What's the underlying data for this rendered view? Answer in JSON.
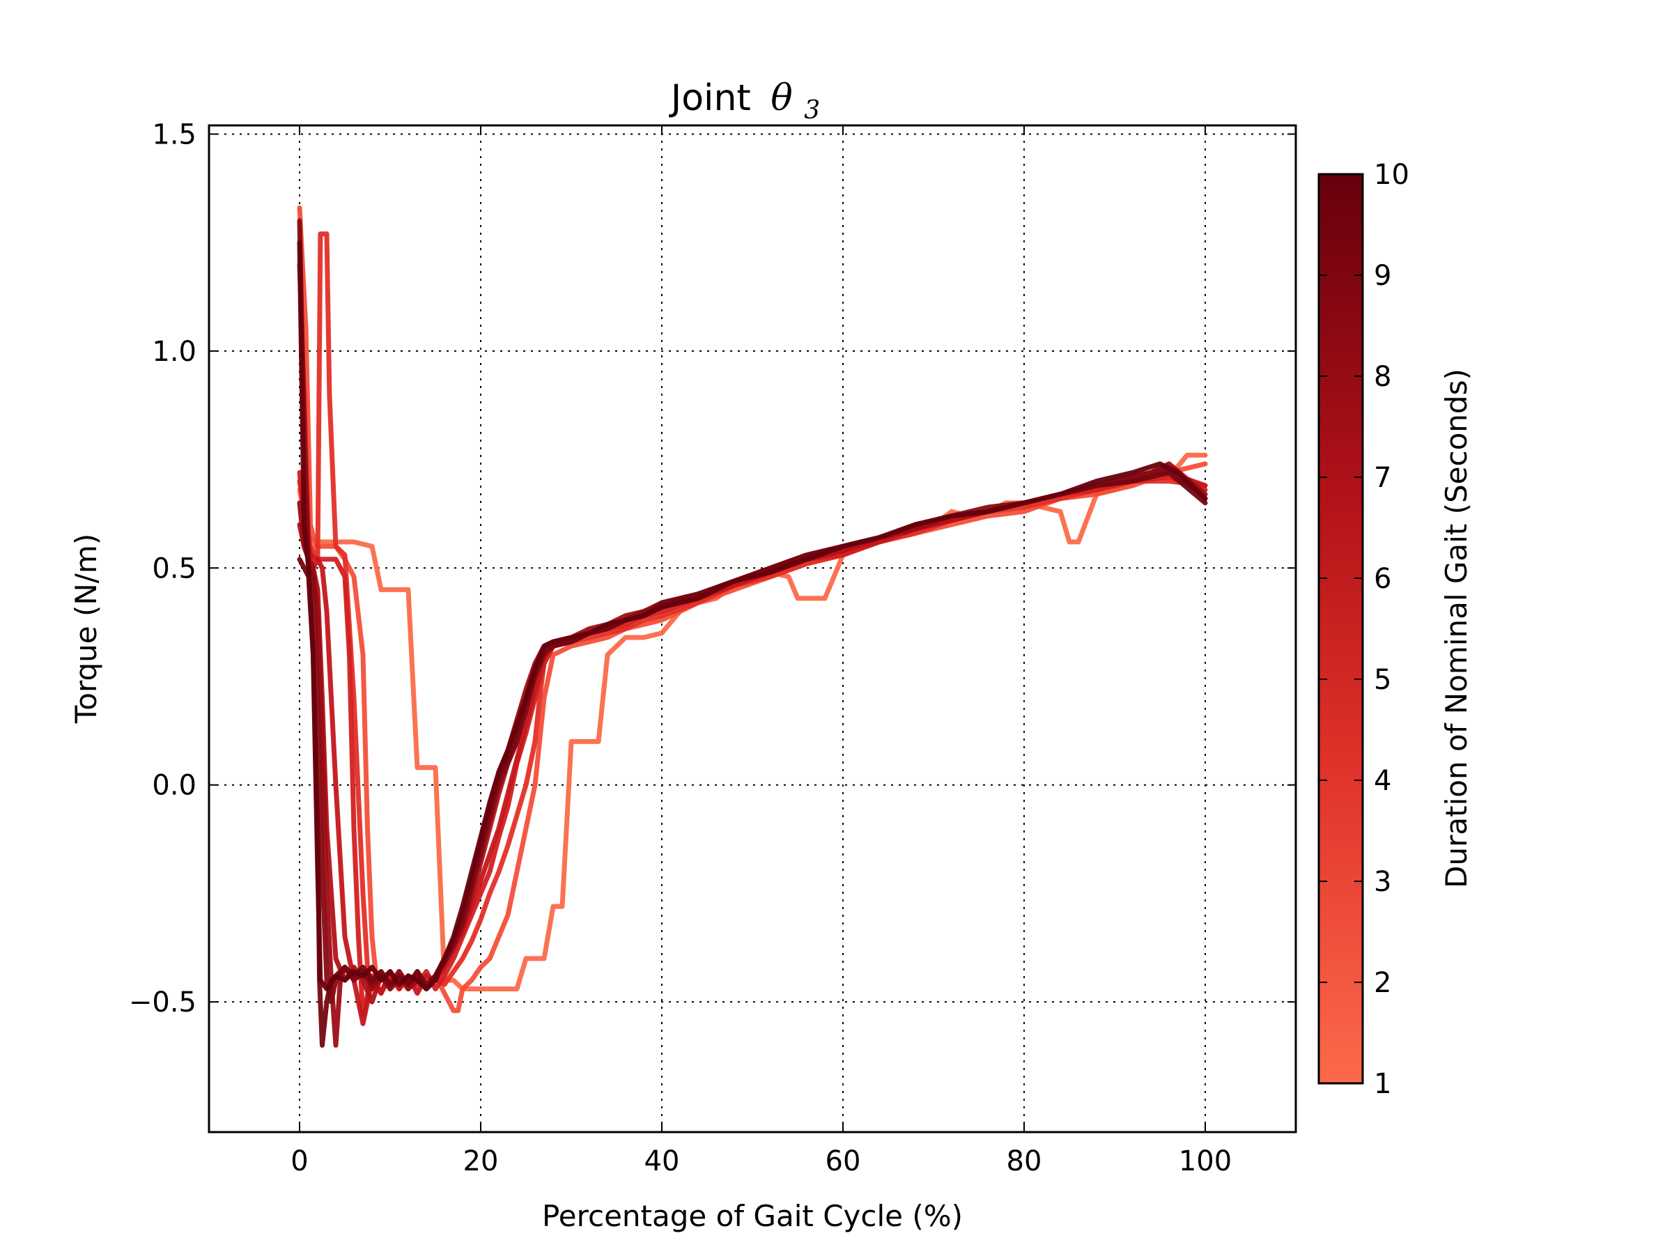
{
  "chart_data": {
    "type": "line",
    "title": "Joint θ3",
    "title_text": "Joint",
    "title_symbol": "θ",
    "title_subscript": "3",
    "xlabel": "Percentage of Gait Cycle (%)",
    "ylabel": "Torque (N/m)",
    "xlim": [
      -10,
      110
    ],
    "ylim": [
      -0.8,
      1.52
    ],
    "xticks": [
      0,
      20,
      40,
      60,
      80,
      100
    ],
    "xtick_labels": [
      "0",
      "20",
      "40",
      "60",
      "80",
      "100"
    ],
    "yticks": [
      -0.5,
      0.0,
      0.5,
      1.0,
      1.5
    ],
    "ytick_labels": [
      "−0.5",
      "0.0",
      "0.5",
      "1.0",
      "1.5"
    ],
    "grid": true,
    "colorbar": {
      "label": "Duration of Nominal Gait (Seconds)",
      "min": 1,
      "max": 10,
      "ticks": [
        1,
        2,
        3,
        4,
        5,
        6,
        7,
        8,
        9,
        10
      ],
      "tick_labels": [
        "1",
        "2",
        "3",
        "4",
        "5",
        "6",
        "7",
        "8",
        "9",
        "10"
      ],
      "color_low": "#fb6a4a",
      "color_high": "#67000d"
    },
    "series": [
      {
        "duration": 1,
        "color": "#fb6a4a",
        "x": [
          0,
          1,
          2,
          3,
          4,
          6,
          8,
          9,
          10,
          11,
          12,
          13,
          14,
          15,
          16,
          17,
          18,
          19,
          20,
          22,
          24,
          25,
          26,
          27,
          28,
          29,
          30,
          31,
          32,
          33,
          34,
          36,
          38,
          40,
          42,
          44,
          46,
          48,
          50,
          52,
          54,
          55,
          56,
          58,
          60,
          62,
          64,
          66,
          68,
          70,
          72,
          74,
          76,
          78,
          80,
          82,
          84,
          85,
          86,
          88,
          90,
          92,
          94,
          96,
          98,
          100
        ],
        "y": [
          0.68,
          0.57,
          0.56,
          0.56,
          0.56,
          0.56,
          0.55,
          0.45,
          0.45,
          0.45,
          0.45,
          0.04,
          0.04,
          0.04,
          -0.45,
          -0.45,
          -0.47,
          -0.47,
          -0.47,
          -0.47,
          -0.47,
          -0.4,
          -0.4,
          -0.4,
          -0.28,
          -0.28,
          0.1,
          0.1,
          0.1,
          0.1,
          0.3,
          0.34,
          0.34,
          0.35,
          0.4,
          0.42,
          0.43,
          0.46,
          0.47,
          0.49,
          0.48,
          0.43,
          0.43,
          0.43,
          0.53,
          0.55,
          0.57,
          0.57,
          0.6,
          0.6,
          0.63,
          0.62,
          0.63,
          0.65,
          0.65,
          0.64,
          0.63,
          0.56,
          0.56,
          0.67,
          0.68,
          0.7,
          0.72,
          0.71,
          0.76,
          0.76
        ]
      },
      {
        "duration": 2,
        "color": "#f44f39",
        "x": [
          0,
          0.7,
          1.2,
          1.8,
          3,
          4,
          5,
          6,
          7,
          7.5,
          8,
          8.5,
          9,
          10,
          11,
          12,
          13,
          14,
          15,
          16,
          17,
          17.5,
          18,
          19,
          20,
          21,
          22,
          23,
          24,
          25,
          26,
          26.5,
          27,
          28,
          30,
          32,
          34,
          36,
          38,
          40,
          44,
          48,
          52,
          56,
          60,
          64,
          68,
          72,
          76,
          80,
          84,
          88,
          92,
          96,
          100
        ],
        "y": [
          1.33,
          1.05,
          0.6,
          0.55,
          0.55,
          0.55,
          0.52,
          0.48,
          0.3,
          -0.1,
          -0.35,
          -0.45,
          -0.43,
          -0.47,
          -0.45,
          -0.47,
          -0.44,
          -0.46,
          -0.44,
          -0.48,
          -0.52,
          -0.52,
          -0.47,
          -0.45,
          -0.42,
          -0.4,
          -0.35,
          -0.3,
          -0.2,
          -0.1,
          0.0,
          0.1,
          0.2,
          0.3,
          0.32,
          0.33,
          0.34,
          0.36,
          0.37,
          0.38,
          0.42,
          0.45,
          0.48,
          0.51,
          0.53,
          0.56,
          0.58,
          0.6,
          0.62,
          0.63,
          0.66,
          0.67,
          0.69,
          0.72,
          0.74
        ]
      },
      {
        "duration": 3,
        "color": "#e32f27",
        "x": [
          0,
          0.6,
          1.2,
          2,
          2.3,
          3,
          3.3,
          4,
          5,
          6,
          7,
          7.5,
          8,
          9,
          10,
          11,
          12,
          13,
          14,
          15,
          16,
          17,
          18,
          19,
          20,
          21,
          22,
          23,
          24,
          25,
          26,
          26.5,
          27,
          28,
          30,
          32,
          34,
          36,
          38,
          40,
          44,
          48,
          52,
          56,
          60,
          64,
          68,
          72,
          76,
          80,
          84,
          88,
          92,
          96,
          100
        ],
        "y": [
          0.7,
          0.62,
          0.55,
          0.52,
          1.27,
          1.27,
          0.9,
          0.55,
          0.53,
          0.2,
          -0.25,
          -0.42,
          -0.47,
          -0.44,
          -0.46,
          -0.43,
          -0.47,
          -0.44,
          -0.47,
          -0.44,
          -0.46,
          -0.43,
          -0.4,
          -0.36,
          -0.31,
          -0.25,
          -0.2,
          -0.14,
          -0.07,
          0.0,
          0.1,
          0.2,
          0.28,
          0.32,
          0.33,
          0.34,
          0.35,
          0.36,
          0.38,
          0.39,
          0.42,
          0.46,
          0.48,
          0.51,
          0.53,
          0.56,
          0.58,
          0.61,
          0.63,
          0.64,
          0.66,
          0.68,
          0.7,
          0.7,
          0.69
        ]
      },
      {
        "duration": 4,
        "color": "#d32020",
        "x": [
          0,
          0.6,
          1.2,
          2,
          3,
          4,
          5,
          5.5,
          6,
          6.5,
          7,
          8,
          9,
          10,
          11,
          12,
          13,
          14,
          15,
          16,
          17,
          18,
          19,
          20,
          21,
          22,
          23,
          24,
          25,
          26,
          27,
          28,
          30,
          32,
          34,
          36,
          38,
          40,
          44,
          48,
          52,
          56,
          60,
          64,
          68,
          72,
          76,
          80,
          84,
          88,
          92,
          96,
          100
        ],
        "y": [
          0.72,
          0.6,
          0.53,
          0.52,
          0.52,
          0.52,
          0.48,
          0.3,
          -0.1,
          -0.35,
          -0.53,
          -0.44,
          -0.48,
          -0.44,
          -0.47,
          -0.44,
          -0.46,
          -0.43,
          -0.47,
          -0.44,
          -0.4,
          -0.35,
          -0.3,
          -0.25,
          -0.2,
          -0.12,
          -0.05,
          0.05,
          0.12,
          0.2,
          0.28,
          0.32,
          0.33,
          0.35,
          0.36,
          0.37,
          0.39,
          0.4,
          0.43,
          0.46,
          0.49,
          0.52,
          0.53,
          0.56,
          0.59,
          0.61,
          0.63,
          0.65,
          0.67,
          0.68,
          0.7,
          0.71,
          0.68
        ]
      },
      {
        "duration": 5,
        "color": "#c4161c",
        "x": [
          0,
          0.5,
          1,
          1.5,
          2,
          2.5,
          3,
          4,
          5,
          6,
          7,
          8,
          9,
          10,
          11,
          12,
          13,
          14,
          15,
          16,
          17,
          18,
          19,
          20,
          21,
          22,
          23,
          24,
          25,
          26,
          27,
          28,
          30,
          32,
          34,
          36,
          38,
          40,
          44,
          48,
          52,
          56,
          60,
          64,
          68,
          72,
          76,
          80,
          84,
          88,
          92,
          96,
          100
        ],
        "y": [
          1.2,
          0.9,
          0.55,
          0.5,
          0.52,
          0.5,
          0.4,
          0.0,
          -0.35,
          -0.45,
          -0.55,
          -0.45,
          -0.48,
          -0.43,
          -0.47,
          -0.44,
          -0.48,
          -0.44,
          -0.45,
          -0.42,
          -0.38,
          -0.34,
          -0.28,
          -0.22,
          -0.16,
          -0.1,
          -0.02,
          0.06,
          0.14,
          0.22,
          0.3,
          0.32,
          0.33,
          0.35,
          0.36,
          0.38,
          0.39,
          0.41,
          0.43,
          0.46,
          0.49,
          0.52,
          0.54,
          0.56,
          0.59,
          0.61,
          0.63,
          0.65,
          0.67,
          0.69,
          0.71,
          0.72,
          0.69
        ]
      },
      {
        "duration": 6,
        "color": "#b11218",
        "x": [
          0,
          0.5,
          1,
          1.5,
          2,
          2.5,
          3,
          4,
          5,
          6,
          7,
          8,
          9,
          10,
          11,
          12,
          13,
          14,
          15,
          16,
          17,
          18,
          19,
          20,
          21,
          22,
          23,
          24,
          25,
          26,
          27,
          28,
          30,
          32,
          34,
          36,
          38,
          40,
          44,
          48,
          52,
          56,
          60,
          64,
          68,
          72,
          76,
          80,
          84,
          88,
          92,
          96,
          100
        ],
        "y": [
          0.6,
          0.55,
          0.52,
          0.5,
          0.45,
          0.2,
          -0.1,
          -0.4,
          -0.45,
          -0.42,
          -0.45,
          -0.5,
          -0.44,
          -0.46,
          -0.43,
          -0.46,
          -0.44,
          -0.46,
          -0.44,
          -0.41,
          -0.37,
          -0.33,
          -0.26,
          -0.18,
          -0.1,
          -0.02,
          0.05,
          0.1,
          0.18,
          0.25,
          0.3,
          0.32,
          0.33,
          0.35,
          0.37,
          0.38,
          0.39,
          0.41,
          0.44,
          0.47,
          0.49,
          0.52,
          0.54,
          0.57,
          0.59,
          0.61,
          0.63,
          0.65,
          0.67,
          0.69,
          0.71,
          0.73,
          0.66
        ]
      },
      {
        "duration": 7,
        "color": "#9d0d15",
        "x": [
          0,
          0.5,
          1,
          1.5,
          2,
          2.5,
          3,
          3.5,
          4,
          4.5,
          5,
          6,
          7,
          8,
          9,
          10,
          11,
          12,
          13,
          14,
          15,
          16,
          17,
          18,
          19,
          20,
          21,
          22,
          23,
          24,
          25,
          26,
          27,
          28,
          30,
          32,
          34,
          36,
          38,
          40,
          44,
          48,
          52,
          56,
          60,
          64,
          68,
          72,
          76,
          80,
          84,
          88,
          92,
          96,
          100
        ],
        "y": [
          0.65,
          0.55,
          0.52,
          0.5,
          0.4,
          0.1,
          -0.25,
          -0.45,
          -0.6,
          -0.45,
          -0.42,
          -0.45,
          -0.43,
          -0.47,
          -0.44,
          -0.46,
          -0.43,
          -0.47,
          -0.45,
          -0.46,
          -0.44,
          -0.4,
          -0.36,
          -0.3,
          -0.22,
          -0.13,
          -0.05,
          0.03,
          0.08,
          0.15,
          0.22,
          0.28,
          0.32,
          0.33,
          0.34,
          0.36,
          0.37,
          0.39,
          0.4,
          0.42,
          0.44,
          0.47,
          0.5,
          0.52,
          0.55,
          0.57,
          0.59,
          0.62,
          0.63,
          0.65,
          0.67,
          0.69,
          0.7,
          0.74,
          0.67
        ]
      },
      {
        "duration": 8,
        "color": "#880b13",
        "x": [
          0,
          0.5,
          1,
          1.5,
          2,
          2.5,
          3,
          3.5,
          4,
          5,
          6,
          7,
          8,
          9,
          10,
          11,
          12,
          13,
          14,
          15,
          16,
          17,
          18,
          19,
          20,
          21,
          22,
          23,
          24,
          25,
          26,
          27,
          28,
          30,
          32,
          34,
          36,
          38,
          40,
          44,
          48,
          52,
          56,
          60,
          64,
          68,
          72,
          76,
          80,
          84,
          88,
          92,
          96,
          100
        ],
        "y": [
          1.3,
          0.8,
          0.5,
          0.48,
          0.2,
          -0.2,
          -0.45,
          -0.5,
          -0.45,
          -0.42,
          -0.45,
          -0.43,
          -0.46,
          -0.44,
          -0.47,
          -0.44,
          -0.46,
          -0.43,
          -0.46,
          -0.44,
          -0.41,
          -0.37,
          -0.32,
          -0.24,
          -0.16,
          -0.08,
          0.0,
          0.05,
          0.1,
          0.17,
          0.25,
          0.3,
          0.32,
          0.33,
          0.35,
          0.36,
          0.38,
          0.4,
          0.41,
          0.44,
          0.47,
          0.5,
          0.53,
          0.55,
          0.57,
          0.6,
          0.62,
          0.64,
          0.65,
          0.67,
          0.69,
          0.71,
          0.73,
          0.66
        ]
      },
      {
        "duration": 9,
        "color": "#740711",
        "x": [
          0,
          0.5,
          1,
          1.5,
          2,
          2.2,
          2.5,
          3,
          3.5,
          4,
          5,
          6,
          7,
          8,
          9,
          10,
          11,
          12,
          13,
          14,
          15,
          16,
          17,
          18,
          19,
          20,
          21,
          22,
          23,
          24,
          25,
          26,
          27,
          28,
          30,
          32,
          34,
          36,
          38,
          40,
          44,
          48,
          52,
          56,
          60,
          64,
          68,
          72,
          76,
          80,
          84,
          88,
          92,
          96,
          100
        ],
        "y": [
          0.52,
          0.5,
          0.48,
          0.3,
          -0.1,
          -0.45,
          -0.6,
          -0.5,
          -0.45,
          -0.44,
          -0.42,
          -0.44,
          -0.42,
          -0.45,
          -0.43,
          -0.46,
          -0.44,
          -0.46,
          -0.43,
          -0.47,
          -0.44,
          -0.4,
          -0.36,
          -0.3,
          -0.22,
          -0.14,
          -0.06,
          0.02,
          0.06,
          0.12,
          0.19,
          0.26,
          0.31,
          0.32,
          0.33,
          0.35,
          0.36,
          0.38,
          0.39,
          0.42,
          0.44,
          0.47,
          0.5,
          0.53,
          0.55,
          0.57,
          0.6,
          0.62,
          0.63,
          0.65,
          0.67,
          0.69,
          0.7,
          0.72,
          0.65
        ]
      },
      {
        "duration": 10,
        "color": "#67000d",
        "x": [
          0,
          0.5,
          1,
          1.5,
          2,
          2.3,
          3,
          4,
          5,
          6,
          7,
          8,
          9,
          10,
          11,
          12,
          13,
          14,
          15,
          16,
          17,
          18,
          19,
          20,
          21,
          22,
          23,
          24,
          25,
          26,
          27,
          28,
          30,
          32,
          34,
          36,
          38,
          40,
          44,
          48,
          52,
          56,
          60,
          64,
          68,
          72,
          76,
          80,
          84,
          88,
          92,
          95,
          97,
          100
        ],
        "y": [
          1.25,
          0.6,
          0.5,
          0.3,
          -0.2,
          -0.45,
          -0.47,
          -0.44,
          -0.45,
          -0.43,
          -0.44,
          -0.42,
          -0.45,
          -0.43,
          -0.46,
          -0.44,
          -0.45,
          -0.47,
          -0.45,
          -0.4,
          -0.35,
          -0.28,
          -0.2,
          -0.12,
          -0.04,
          0.03,
          0.08,
          0.14,
          0.2,
          0.27,
          0.32,
          0.33,
          0.34,
          0.35,
          0.37,
          0.38,
          0.39,
          0.41,
          0.43,
          0.47,
          0.49,
          0.52,
          0.55,
          0.57,
          0.6,
          0.62,
          0.63,
          0.65,
          0.67,
          0.7,
          0.72,
          0.74,
          0.72,
          0.66
        ]
      }
    ]
  }
}
